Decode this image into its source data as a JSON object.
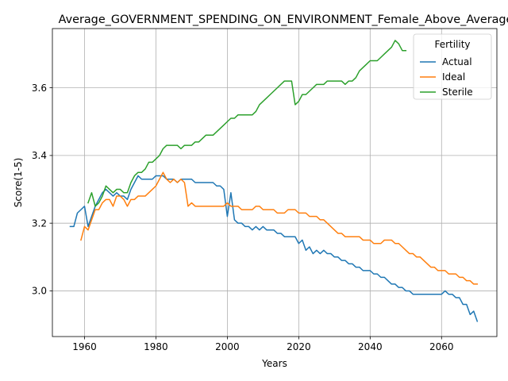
{
  "chart_data": {
    "type": "line",
    "title": "Average_GOVERNMENT_SPENDING_ON_ENVIRONMENT_Female_Above_Average",
    "xlabel": "Years",
    "ylabel": "Score(1-5)",
    "xlim": [
      1951,
      2075.5
    ],
    "ylim": [
      2.865,
      3.775
    ],
    "xticks": [
      1960,
      1980,
      2000,
      2020,
      2040,
      2060
    ],
    "yticks": [
      3.0,
      3.2,
      3.4,
      3.6
    ],
    "xtick_labels": [
      "1960",
      "1980",
      "2000",
      "2020",
      "2040",
      "2060"
    ],
    "ytick_labels": [
      "3.0",
      "3.2",
      "3.4",
      "3.6"
    ],
    "grid": true,
    "legend": {
      "title": "Fertility",
      "position": "top-right"
    },
    "series": [
      {
        "name": "Actual",
        "color": "#1f77b4",
        "x": [
          1956,
          1957,
          1958,
          1959,
          1960,
          1961,
          1962,
          1963,
          1964,
          1965,
          1966,
          1967,
          1968,
          1969,
          1970,
          1971,
          1972,
          1973,
          1974,
          1975,
          1976,
          1977,
          1978,
          1979,
          1980,
          1981,
          1982,
          1983,
          1984,
          1985,
          1986,
          1987,
          1988,
          1989,
          1990,
          1991,
          1992,
          1993,
          1994,
          1995,
          1996,
          1997,
          1998,
          1999,
          2000,
          2001,
          2002,
          2003,
          2004,
          2005,
          2006,
          2007,
          2008,
          2009,
          2010,
          2011,
          2012,
          2013,
          2014,
          2015,
          2016,
          2017,
          2018,
          2019,
          2020,
          2021,
          2022,
          2023,
          2024,
          2025,
          2026,
          2027,
          2028,
          2029,
          2030,
          2031,
          2032,
          2033,
          2034,
          2035,
          2036,
          2037,
          2038,
          2039,
          2040,
          2041,
          2042,
          2043,
          2044,
          2045,
          2046,
          2047,
          2048,
          2049,
          2050,
          2051,
          2052,
          2053,
          2054,
          2055,
          2056,
          2057,
          2058,
          2059,
          2060,
          2061,
          2062,
          2063,
          2064,
          2065,
          2066,
          2067,
          2068,
          2069,
          2070
        ],
        "y": [
          3.19,
          3.19,
          3.23,
          3.24,
          3.25,
          3.19,
          3.22,
          3.25,
          3.27,
          3.29,
          3.3,
          3.29,
          3.28,
          3.29,
          3.28,
          3.28,
          3.27,
          3.3,
          3.32,
          3.34,
          3.33,
          3.33,
          3.33,
          3.33,
          3.34,
          3.34,
          3.34,
          3.33,
          3.33,
          3.33,
          3.32,
          3.33,
          3.33,
          3.33,
          3.33,
          3.32,
          3.32,
          3.32,
          3.32,
          3.32,
          3.32,
          3.31,
          3.31,
          3.3,
          3.22,
          3.29,
          3.21,
          3.2,
          3.2,
          3.19,
          3.19,
          3.18,
          3.19,
          3.18,
          3.19,
          3.18,
          3.18,
          3.18,
          3.17,
          3.17,
          3.16,
          3.16,
          3.16,
          3.16,
          3.14,
          3.15,
          3.12,
          3.13,
          3.11,
          3.12,
          3.11,
          3.12,
          3.11,
          3.11,
          3.1,
          3.1,
          3.09,
          3.09,
          3.08,
          3.08,
          3.07,
          3.07,
          3.06,
          3.06,
          3.06,
          3.05,
          3.05,
          3.04,
          3.04,
          3.03,
          3.02,
          3.02,
          3.01,
          3.01,
          3.0,
          3.0,
          2.99,
          2.99,
          2.99,
          2.99,
          2.99,
          2.99,
          2.99,
          2.99,
          2.99,
          3.0,
          2.99,
          2.99,
          2.98,
          2.98,
          2.96,
          2.96,
          2.93,
          2.94,
          2.91
        ]
      },
      {
        "name": "Ideal",
        "color": "#ff7f0e",
        "x": [
          1959,
          1960,
          1961,
          1962,
          1963,
          1964,
          1965,
          1966,
          1967,
          1968,
          1969,
          1970,
          1971,
          1972,
          1973,
          1974,
          1975,
          1976,
          1977,
          1978,
          1979,
          1980,
          1981,
          1982,
          1983,
          1984,
          1985,
          1986,
          1987,
          1988,
          1989,
          1990,
          1991,
          1992,
          1993,
          1994,
          1995,
          1996,
          1997,
          1998,
          1999,
          2000,
          2001,
          2002,
          2003,
          2004,
          2005,
          2006,
          2007,
          2008,
          2009,
          2010,
          2011,
          2012,
          2013,
          2014,
          2015,
          2016,
          2017,
          2018,
          2019,
          2020,
          2021,
          2022,
          2023,
          2024,
          2025,
          2026,
          2027,
          2028,
          2029,
          2030,
          2031,
          2032,
          2033,
          2034,
          2035,
          2036,
          2037,
          2038,
          2039,
          2040,
          2041,
          2042,
          2043,
          2044,
          2045,
          2046,
          2047,
          2048,
          2049,
          2050,
          2051,
          2052,
          2053,
          2054,
          2055,
          2056,
          2057,
          2058,
          2059,
          2060,
          2061,
          2062,
          2063,
          2064,
          2065,
          2066,
          2067,
          2068,
          2069,
          2070
        ],
        "y": [
          3.15,
          3.19,
          3.18,
          3.21,
          3.24,
          3.24,
          3.26,
          3.27,
          3.27,
          3.25,
          3.28,
          3.28,
          3.27,
          3.25,
          3.27,
          3.27,
          3.28,
          3.28,
          3.28,
          3.29,
          3.3,
          3.31,
          3.33,
          3.35,
          3.33,
          3.32,
          3.33,
          3.32,
          3.33,
          3.32,
          3.25,
          3.26,
          3.25,
          3.25,
          3.25,
          3.25,
          3.25,
          3.25,
          3.25,
          3.25,
          3.25,
          3.26,
          3.25,
          3.25,
          3.25,
          3.24,
          3.24,
          3.24,
          3.24,
          3.25,
          3.25,
          3.24,
          3.24,
          3.24,
          3.24,
          3.23,
          3.23,
          3.23,
          3.24,
          3.24,
          3.24,
          3.23,
          3.23,
          3.23,
          3.22,
          3.22,
          3.22,
          3.21,
          3.21,
          3.2,
          3.19,
          3.18,
          3.17,
          3.17,
          3.16,
          3.16,
          3.16,
          3.16,
          3.16,
          3.15,
          3.15,
          3.15,
          3.14,
          3.14,
          3.14,
          3.15,
          3.15,
          3.15,
          3.14,
          3.14,
          3.13,
          3.12,
          3.11,
          3.11,
          3.1,
          3.1,
          3.09,
          3.08,
          3.07,
          3.07,
          3.06,
          3.06,
          3.06,
          3.05,
          3.05,
          3.05,
          3.04,
          3.04,
          3.03,
          3.03,
          3.02,
          3.02
        ]
      },
      {
        "name": "Sterile",
        "color": "#2ca02c",
        "x": [
          1961,
          1962,
          1963,
          1964,
          1965,
          1966,
          1967,
          1968,
          1969,
          1970,
          1971,
          1972,
          1973,
          1974,
          1975,
          1976,
          1977,
          1978,
          1979,
          1980,
          1981,
          1982,
          1983,
          1984,
          1985,
          1986,
          1987,
          1988,
          1989,
          1990,
          1991,
          1992,
          1993,
          1994,
          1995,
          1996,
          1997,
          1998,
          1999,
          2000,
          2001,
          2002,
          2003,
          2004,
          2005,
          2006,
          2007,
          2008,
          2009,
          2010,
          2011,
          2012,
          2013,
          2014,
          2015,
          2016,
          2017,
          2018,
          2019,
          2020,
          2021,
          2022,
          2023,
          2024,
          2025,
          2026,
          2027,
          2028,
          2029,
          2030,
          2031,
          2032,
          2033,
          2034,
          2035,
          2036,
          2037,
          2038,
          2039,
          2040,
          2041,
          2042,
          2043,
          2044,
          2045,
          2046,
          2047,
          2048,
          2049,
          2050
        ],
        "y": [
          3.26,
          3.29,
          3.25,
          3.26,
          3.28,
          3.31,
          3.3,
          3.29,
          3.3,
          3.3,
          3.29,
          3.29,
          3.32,
          3.34,
          3.35,
          3.35,
          3.36,
          3.38,
          3.38,
          3.39,
          3.4,
          3.42,
          3.43,
          3.43,
          3.43,
          3.43,
          3.42,
          3.43,
          3.43,
          3.43,
          3.44,
          3.44,
          3.45,
          3.46,
          3.46,
          3.46,
          3.47,
          3.48,
          3.49,
          3.5,
          3.51,
          3.51,
          3.52,
          3.52,
          3.52,
          3.52,
          3.52,
          3.53,
          3.55,
          3.56,
          3.57,
          3.58,
          3.59,
          3.6,
          3.61,
          3.62,
          3.62,
          3.62,
          3.55,
          3.56,
          3.58,
          3.58,
          3.59,
          3.6,
          3.61,
          3.61,
          3.61,
          3.62,
          3.62,
          3.62,
          3.62,
          3.62,
          3.61,
          3.62,
          3.62,
          3.63,
          3.65,
          3.66,
          3.67,
          3.68,
          3.68,
          3.68,
          3.69,
          3.7,
          3.71,
          3.72,
          3.74,
          3.73,
          3.71,
          3.71
        ]
      }
    ]
  }
}
